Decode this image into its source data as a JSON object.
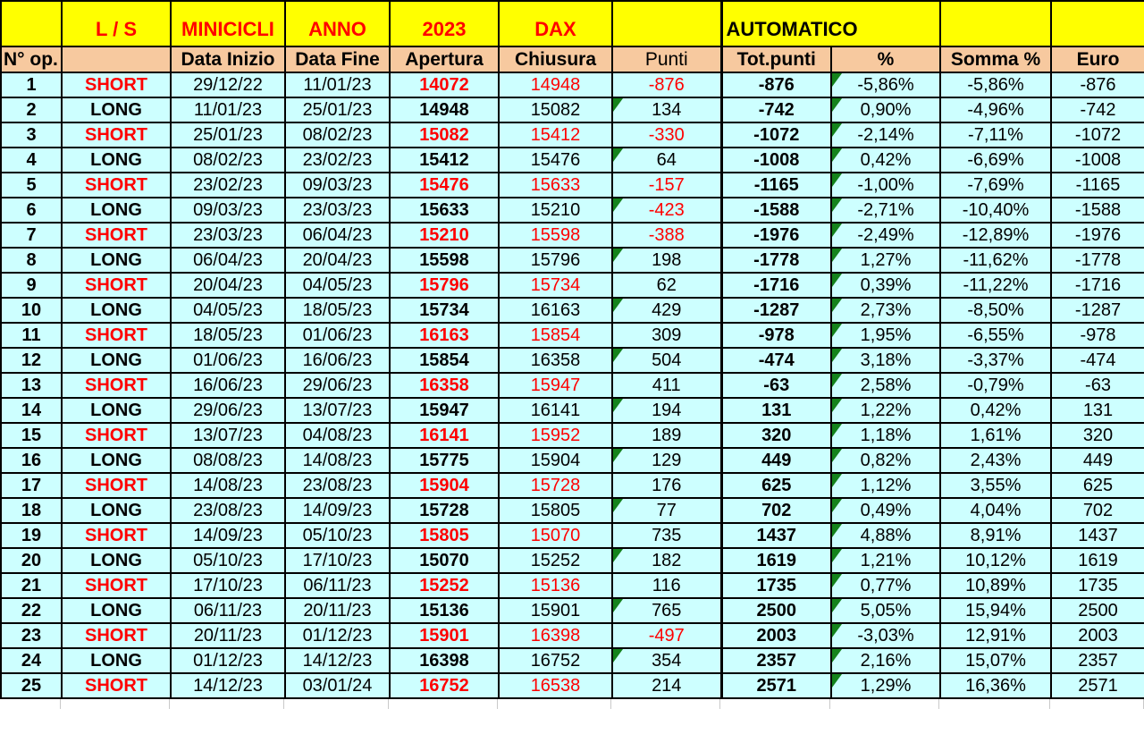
{
  "colors": {
    "band_yellow": "#FFFF00",
    "header_tan": "#F7C99F",
    "row_cyan": "#CDFFFF",
    "accent_red": "#FF0000",
    "marker_green": "#15831C",
    "grid_black": "#000000"
  },
  "table": {
    "band_headers": {
      "ls": "L / S",
      "minicicli": "MINICICLI",
      "anno": "ANNO",
      "year": "2023",
      "dax": "DAX",
      "automatico": "AUTOMATICO"
    },
    "column_headers": {
      "n_op": "N° op.",
      "data_inizio": "Data Inizio",
      "data_fine": "Data Fine",
      "apertura": "Apertura",
      "chiusura": "Chiusura",
      "punti": "Punti",
      "tot_punti": "Tot.punti",
      "pct": "%",
      "somma_pct": "Somma %",
      "euro": "Euro"
    },
    "rows": [
      {
        "n": "1",
        "ls": "SHORT",
        "data_inizio": "29/12/22",
        "data_fine": "11/01/23",
        "apertura": "14072",
        "chiusura": "14948",
        "punti": "-876",
        "tot_punti": "-876",
        "pct": "-5,86%",
        "somma_pct": "-5,86%",
        "euro": "-876",
        "punti_marker": false,
        "pct_marker": true
      },
      {
        "n": "2",
        "ls": "LONG",
        "data_inizio": "11/01/23",
        "data_fine": "25/01/23",
        "apertura": "14948",
        "chiusura": "15082",
        "punti": "134",
        "tot_punti": "-742",
        "pct": "0,90%",
        "somma_pct": "-4,96%",
        "euro": "-742",
        "punti_marker": true,
        "pct_marker": true
      },
      {
        "n": "3",
        "ls": "SHORT",
        "data_inizio": "25/01/23",
        "data_fine": "08/02/23",
        "apertura": "15082",
        "chiusura": "15412",
        "punti": "-330",
        "tot_punti": "-1072",
        "pct": "-2,14%",
        "somma_pct": "-7,11%",
        "euro": "-1072",
        "punti_marker": false,
        "pct_marker": true
      },
      {
        "n": "4",
        "ls": "LONG",
        "data_inizio": "08/02/23",
        "data_fine": "23/02/23",
        "apertura": "15412",
        "chiusura": "15476",
        "punti": "64",
        "tot_punti": "-1008",
        "pct": "0,42%",
        "somma_pct": "-6,69%",
        "euro": "-1008",
        "punti_marker": true,
        "pct_marker": true
      },
      {
        "n": "5",
        "ls": "SHORT",
        "data_inizio": "23/02/23",
        "data_fine": "09/03/23",
        "apertura": "15476",
        "chiusura": "15633",
        "punti": "-157",
        "tot_punti": "-1165",
        "pct": "-1,00%",
        "somma_pct": "-7,69%",
        "euro": "-1165",
        "punti_marker": false,
        "pct_marker": true
      },
      {
        "n": "6",
        "ls": "LONG",
        "data_inizio": "09/03/23",
        "data_fine": "23/03/23",
        "apertura": "15633",
        "chiusura": "15210",
        "punti": "-423",
        "tot_punti": "-1588",
        "pct": "-2,71%",
        "somma_pct": "-10,40%",
        "euro": "-1588",
        "punti_marker": true,
        "pct_marker": true
      },
      {
        "n": "7",
        "ls": "SHORT",
        "data_inizio": "23/03/23",
        "data_fine": "06/04/23",
        "apertura": "15210",
        "chiusura": "15598",
        "punti": "-388",
        "tot_punti": "-1976",
        "pct": "-2,49%",
        "somma_pct": "-12,89%",
        "euro": "-1976",
        "punti_marker": false,
        "pct_marker": true
      },
      {
        "n": "8",
        "ls": "LONG",
        "data_inizio": "06/04/23",
        "data_fine": "20/04/23",
        "apertura": "15598",
        "chiusura": "15796",
        "punti": "198",
        "tot_punti": "-1778",
        "pct": "1,27%",
        "somma_pct": "-11,62%",
        "euro": "-1778",
        "punti_marker": true,
        "pct_marker": true
      },
      {
        "n": "9",
        "ls": "SHORT",
        "data_inizio": "20/04/23",
        "data_fine": "04/05/23",
        "apertura": "15796",
        "chiusura": "15734",
        "punti": "62",
        "tot_punti": "-1716",
        "pct": "0,39%",
        "somma_pct": "-11,22%",
        "euro": "-1716",
        "punti_marker": false,
        "pct_marker": true
      },
      {
        "n": "10",
        "ls": "LONG",
        "data_inizio": "04/05/23",
        "data_fine": "18/05/23",
        "apertura": "15734",
        "chiusura": "16163",
        "punti": "429",
        "tot_punti": "-1287",
        "pct": "2,73%",
        "somma_pct": "-8,50%",
        "euro": "-1287",
        "punti_marker": true,
        "pct_marker": true
      },
      {
        "n": "11",
        "ls": "SHORT",
        "data_inizio": "18/05/23",
        "data_fine": "01/06/23",
        "apertura": "16163",
        "chiusura": "15854",
        "punti": "309",
        "tot_punti": "-978",
        "pct": "1,95%",
        "somma_pct": "-6,55%",
        "euro": "-978",
        "punti_marker": false,
        "pct_marker": true
      },
      {
        "n": "12",
        "ls": "LONG",
        "data_inizio": "01/06/23",
        "data_fine": "16/06/23",
        "apertura": "15854",
        "chiusura": "16358",
        "punti": "504",
        "tot_punti": "-474",
        "pct": "3,18%",
        "somma_pct": "-3,37%",
        "euro": "-474",
        "punti_marker": true,
        "pct_marker": true
      },
      {
        "n": "13",
        "ls": "SHORT",
        "data_inizio": "16/06/23",
        "data_fine": "29/06/23",
        "apertura": "16358",
        "chiusura": "15947",
        "punti": "411",
        "tot_punti": "-63",
        "pct": "2,58%",
        "somma_pct": "-0,79%",
        "euro": "-63",
        "punti_marker": false,
        "pct_marker": true
      },
      {
        "n": "14",
        "ls": "LONG",
        "data_inizio": "29/06/23",
        "data_fine": "13/07/23",
        "apertura": "15947",
        "chiusura": "16141",
        "punti": "194",
        "tot_punti": "131",
        "pct": "1,22%",
        "somma_pct": "0,42%",
        "euro": "131",
        "punti_marker": true,
        "pct_marker": true
      },
      {
        "n": "15",
        "ls": "SHORT",
        "data_inizio": "13/07/23",
        "data_fine": "04/08/23",
        "apertura": "16141",
        "chiusura": "15952",
        "punti": "189",
        "tot_punti": "320",
        "pct": "1,18%",
        "somma_pct": "1,61%",
        "euro": "320",
        "punti_marker": false,
        "pct_marker": true
      },
      {
        "n": "16",
        "ls": "LONG",
        "data_inizio": "08/08/23",
        "data_fine": "14/08/23",
        "apertura": "15775",
        "chiusura": "15904",
        "punti": "129",
        "tot_punti": "449",
        "pct": "0,82%",
        "somma_pct": "2,43%",
        "euro": "449",
        "punti_marker": true,
        "pct_marker": true
      },
      {
        "n": "17",
        "ls": "SHORT",
        "data_inizio": "14/08/23",
        "data_fine": "23/08/23",
        "apertura": "15904",
        "chiusura": "15728",
        "punti": "176",
        "tot_punti": "625",
        "pct": "1,12%",
        "somma_pct": "3,55%",
        "euro": "625",
        "punti_marker": false,
        "pct_marker": true
      },
      {
        "n": "18",
        "ls": "LONG",
        "data_inizio": "23/08/23",
        "data_fine": "14/09/23",
        "apertura": "15728",
        "chiusura": "15805",
        "punti": "77",
        "tot_punti": "702",
        "pct": "0,49%",
        "somma_pct": "4,04%",
        "euro": "702",
        "punti_marker": true,
        "pct_marker": true
      },
      {
        "n": "19",
        "ls": "SHORT",
        "data_inizio": "14/09/23",
        "data_fine": "05/10/23",
        "apertura": "15805",
        "chiusura": "15070",
        "punti": "735",
        "tot_punti": "1437",
        "pct": "4,88%",
        "somma_pct": "8,91%",
        "euro": "1437",
        "punti_marker": false,
        "pct_marker": true
      },
      {
        "n": "20",
        "ls": "LONG",
        "data_inizio": "05/10/23",
        "data_fine": "17/10/23",
        "apertura": "15070",
        "chiusura": "15252",
        "punti": "182",
        "tot_punti": "1619",
        "pct": "1,21%",
        "somma_pct": "10,12%",
        "euro": "1619",
        "punti_marker": true,
        "pct_marker": true
      },
      {
        "n": "21",
        "ls": "SHORT",
        "data_inizio": "17/10/23",
        "data_fine": "06/11/23",
        "apertura": "15252",
        "chiusura": "15136",
        "punti": "116",
        "tot_punti": "1735",
        "pct": "0,77%",
        "somma_pct": "10,89%",
        "euro": "1735",
        "punti_marker": false,
        "pct_marker": true
      },
      {
        "n": "22",
        "ls": "LONG",
        "data_inizio": "06/11/23",
        "data_fine": "20/11/23",
        "apertura": "15136",
        "chiusura": "15901",
        "punti": "765",
        "tot_punti": "2500",
        "pct": "5,05%",
        "somma_pct": "15,94%",
        "euro": "2500",
        "punti_marker": true,
        "pct_marker": true
      },
      {
        "n": "23",
        "ls": "SHORT",
        "data_inizio": "20/11/23",
        "data_fine": "01/12/23",
        "apertura": "15901",
        "chiusura": "16398",
        "punti": "-497",
        "tot_punti": "2003",
        "pct": "-3,03%",
        "somma_pct": "12,91%",
        "euro": "2003",
        "punti_marker": false,
        "pct_marker": true
      },
      {
        "n": "24",
        "ls": "LONG",
        "data_inizio": "01/12/23",
        "data_fine": "14/12/23",
        "apertura": "16398",
        "chiusura": "16752",
        "punti": "354",
        "tot_punti": "2357",
        "pct": "2,16%",
        "somma_pct": "15,07%",
        "euro": "2357",
        "punti_marker": true,
        "pct_marker": true
      },
      {
        "n": "25",
        "ls": "SHORT",
        "data_inizio": "14/12/23",
        "data_fine": "03/01/24",
        "apertura": "16752",
        "chiusura": "16538",
        "punti": "214",
        "tot_punti": "2571",
        "pct": "1,29%",
        "somma_pct": "16,36%",
        "euro": "2571",
        "punti_marker": false,
        "pct_marker": true
      }
    ]
  }
}
